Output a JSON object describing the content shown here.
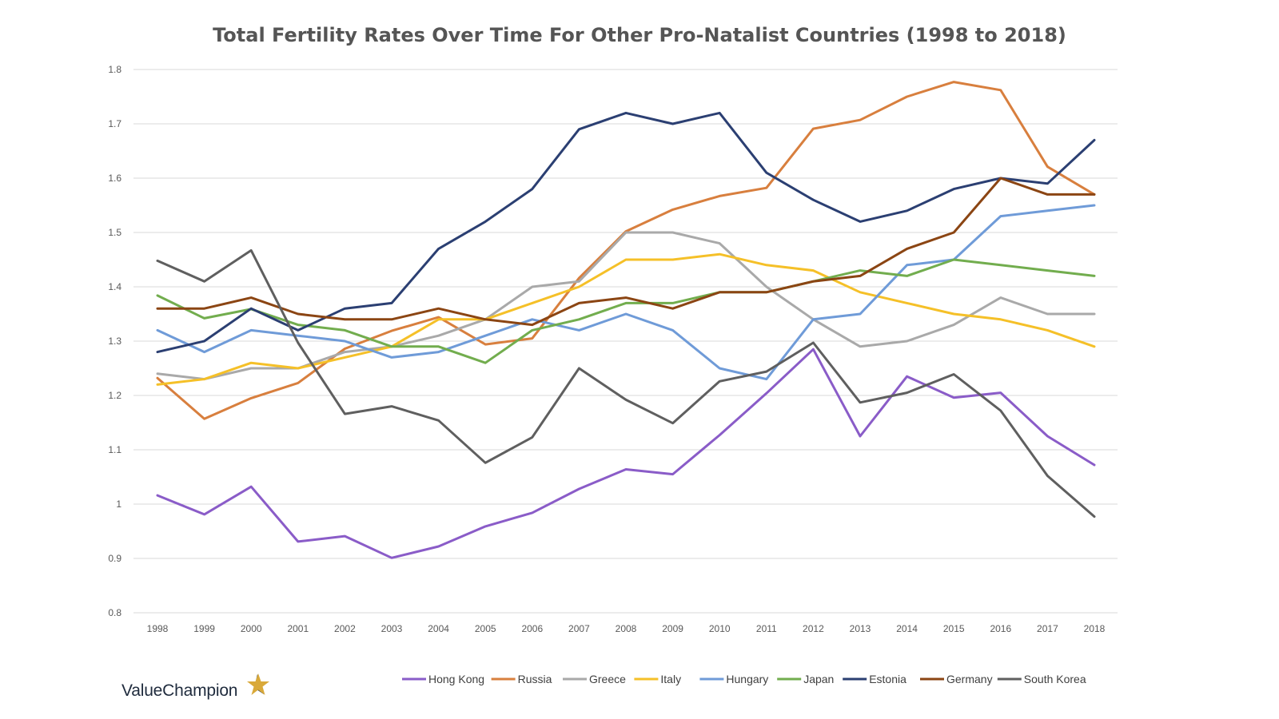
{
  "chart_data": {
    "type": "line",
    "title": "Total Fertility Rates Over Time For Other Pro-Natalist Countries (1998 to 2018)",
    "xlabel": "",
    "ylabel": "",
    "ylim": [
      0.8,
      1.8
    ],
    "yticks": [
      "0.8",
      "0.9",
      "1",
      "1.1",
      "1.2",
      "1.3",
      "1.4",
      "1.5",
      "1.6",
      "1.7",
      "1.8"
    ],
    "categories": [
      "1998",
      "1999",
      "2000",
      "2001",
      "2002",
      "2003",
      "2004",
      "2005",
      "2006",
      "2007",
      "2008",
      "2009",
      "2010",
      "2011",
      "2012",
      "2013",
      "2014",
      "2015",
      "2016",
      "2017",
      "2018"
    ],
    "grid": true,
    "legend_position": "bottom",
    "series": [
      {
        "name": "Hong Kong",
        "color": "#8a5cc8",
        "values": [
          1.016,
          0.981,
          1.032,
          0.931,
          0.941,
          0.901,
          0.922,
          0.959,
          0.984,
          1.028,
          1.064,
          1.055,
          1.127,
          1.204,
          1.285,
          1.125,
          1.235,
          1.196,
          1.205,
          1.125,
          1.072
        ]
      },
      {
        "name": "Russia",
        "color": "#d87f3e",
        "values": [
          1.232,
          1.157,
          1.195,
          1.223,
          1.286,
          1.319,
          1.344,
          1.294,
          1.305,
          1.416,
          1.502,
          1.542,
          1.567,
          1.582,
          1.691,
          1.707,
          1.75,
          1.777,
          1.762,
          1.621,
          1.57
        ]
      },
      {
        "name": "Greece",
        "color": "#a9a9a9",
        "values": [
          1.24,
          1.23,
          1.25,
          1.25,
          1.28,
          1.29,
          1.31,
          1.34,
          1.4,
          1.41,
          1.5,
          1.5,
          1.48,
          1.4,
          1.34,
          1.29,
          1.3,
          1.33,
          1.38,
          1.35,
          1.35
        ]
      },
      {
        "name": "Italy",
        "color": "#f5c028",
        "values": [
          1.22,
          1.23,
          1.26,
          1.25,
          1.27,
          1.29,
          1.34,
          1.34,
          1.37,
          1.4,
          1.45,
          1.45,
          1.46,
          1.44,
          1.43,
          1.39,
          1.37,
          1.35,
          1.34,
          1.32,
          1.29
        ]
      },
      {
        "name": "Hungary",
        "color": "#6f9bd8",
        "values": [
          1.32,
          1.28,
          1.32,
          1.31,
          1.3,
          1.27,
          1.28,
          1.31,
          1.34,
          1.32,
          1.35,
          1.32,
          1.25,
          1.23,
          1.34,
          1.35,
          1.44,
          1.45,
          1.53,
          1.54,
          1.55
        ]
      },
      {
        "name": "Japan",
        "color": "#72ad4e",
        "values": [
          1.384,
          1.342,
          1.359,
          1.33,
          1.32,
          1.29,
          1.29,
          1.26,
          1.32,
          1.34,
          1.37,
          1.37,
          1.39,
          1.39,
          1.41,
          1.43,
          1.42,
          1.45,
          1.44,
          1.43,
          1.42
        ]
      },
      {
        "name": "Estonia",
        "color": "#2b3f72",
        "values": [
          1.28,
          1.3,
          1.36,
          1.32,
          1.36,
          1.37,
          1.47,
          1.52,
          1.58,
          1.69,
          1.72,
          1.7,
          1.72,
          1.61,
          1.56,
          1.52,
          1.54,
          1.58,
          1.6,
          1.59,
          1.67
        ]
      },
      {
        "name": "Germany",
        "color": "#8b4513",
        "values": [
          1.36,
          1.36,
          1.38,
          1.35,
          1.34,
          1.34,
          1.36,
          1.34,
          1.33,
          1.37,
          1.38,
          1.36,
          1.39,
          1.39,
          1.41,
          1.42,
          1.47,
          1.5,
          1.6,
          1.57,
          1.57
        ]
      },
      {
        "name": "South Korea",
        "color": "#5f5f5f",
        "values": [
          1.448,
          1.41,
          1.467,
          1.297,
          1.166,
          1.18,
          1.154,
          1.076,
          1.123,
          1.25,
          1.192,
          1.149,
          1.226,
          1.244,
          1.297,
          1.187,
          1.205,
          1.239,
          1.172,
          1.052,
          0.977
        ]
      }
    ]
  },
  "branding": {
    "name": "ValueChampion",
    "star_color": "#d9a93a",
    "star_shadow_color": "#1f2b3d"
  }
}
